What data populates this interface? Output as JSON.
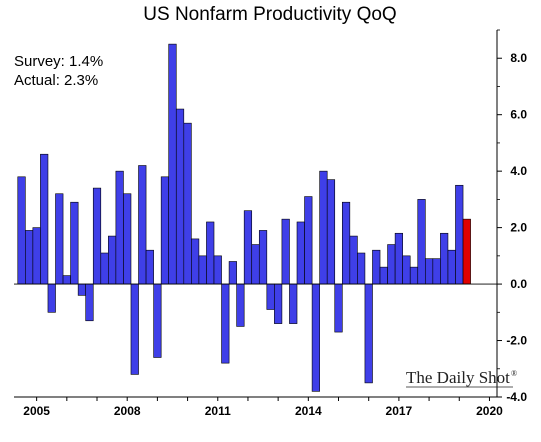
{
  "chart_data": {
    "type": "bar",
    "title": "US Nonfarm Productivity QoQ",
    "annotations": {
      "survey": "Survey: 1.4%",
      "actual": "Actual:  2.3%"
    },
    "brand": "The Daily Shot",
    "brand_mark": "®",
    "x_ticks": [
      {
        "label": "2005",
        "year": 2005
      },
      {
        "label": "2008",
        "year": 2008
      },
      {
        "label": "2011",
        "year": 2011
      },
      {
        "label": "2014",
        "year": 2014
      },
      {
        "label": "2017",
        "year": 2017
      },
      {
        "label": "2020",
        "year": 2020
      }
    ],
    "y_ticks": [
      "8.0",
      "6.0",
      "4.0",
      "2.0",
      "0.0",
      "-2.0",
      "-4.0"
    ],
    "ylim": [
      -4,
      9
    ],
    "xlim": [
      "2004-Q2",
      "2020-Q2"
    ],
    "grid": false,
    "y_axis_side": "right",
    "bar_color": "#3f3fe8",
    "highlight_color": "#e00000",
    "quarters": [
      "2004-Q3",
      "2004-Q4",
      "2005-Q1",
      "2005-Q2",
      "2005-Q3",
      "2005-Q4",
      "2006-Q1",
      "2006-Q2",
      "2006-Q3",
      "2006-Q4",
      "2007-Q1",
      "2007-Q2",
      "2007-Q3",
      "2007-Q4",
      "2008-Q1",
      "2008-Q2",
      "2008-Q3",
      "2008-Q4",
      "2009-Q1",
      "2009-Q2",
      "2009-Q3",
      "2009-Q4",
      "2010-Q1",
      "2010-Q2",
      "2010-Q3",
      "2010-Q4",
      "2011-Q1",
      "2011-Q2",
      "2011-Q3",
      "2011-Q4",
      "2012-Q1",
      "2012-Q2",
      "2012-Q3",
      "2012-Q4",
      "2013-Q1",
      "2013-Q2",
      "2013-Q3",
      "2013-Q4",
      "2014-Q1",
      "2014-Q2",
      "2014-Q3",
      "2014-Q4",
      "2015-Q1",
      "2015-Q2",
      "2015-Q3",
      "2015-Q4",
      "2016-Q1",
      "2016-Q2",
      "2016-Q3",
      "2016-Q4",
      "2017-Q1",
      "2017-Q2",
      "2017-Q3",
      "2017-Q4",
      "2018-Q1",
      "2018-Q2",
      "2018-Q3",
      "2018-Q4",
      "2019-Q1",
      "2019-Q2"
    ],
    "values": [
      3.8,
      1.9,
      2.0,
      4.6,
      -1.0,
      3.2,
      0.3,
      2.9,
      -0.4,
      -1.3,
      3.4,
      1.1,
      1.7,
      4.0,
      3.2,
      -3.2,
      4.2,
      1.2,
      -2.6,
      3.8,
      8.5,
      6.2,
      5.7,
      1.6,
      1.0,
      2.2,
      1.0,
      -2.8,
      0.8,
      -1.5,
      2.6,
      1.4,
      1.9,
      -0.9,
      -1.4,
      2.3,
      -1.4,
      2.2,
      3.1,
      -3.8,
      4.0,
      3.7,
      -1.7,
      2.9,
      1.7,
      1.1,
      -3.5,
      1.2,
      0.6,
      1.4,
      1.8,
      1.0,
      0.6,
      3.0,
      0.9,
      0.9,
      1.8,
      1.2,
      3.5,
      2.3
    ],
    "highlight_index": 59
  }
}
